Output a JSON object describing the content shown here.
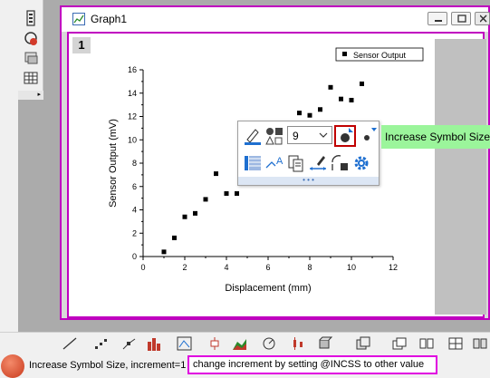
{
  "window": {
    "title": "Graph1",
    "layer_label": "1"
  },
  "chart_data": {
    "type": "scatter",
    "xlabel": "Displacement (mm)",
    "ylabel": "Sensor Output (mV)",
    "xlim": [
      0,
      12
    ],
    "ylim": [
      0,
      16
    ],
    "xticks": [
      0,
      2,
      4,
      6,
      8,
      10,
      12
    ],
    "yticks": [
      0,
      2,
      4,
      6,
      8,
      10,
      12,
      14,
      16
    ],
    "grid": false,
    "legend_position": "top-right",
    "series": [
      {
        "name": "Sensor Output",
        "x": [
          1.0,
          1.5,
          2.0,
          2.5,
          3.0,
          3.5,
          4.0,
          4.5,
          7.5,
          8.0,
          8.5,
          9.0,
          9.5,
          10.0,
          10.5
        ],
        "y": [
          0.4,
          1.6,
          3.4,
          3.7,
          4.9,
          7.1,
          5.4,
          5.4,
          12.3,
          12.1,
          12.6,
          14.5,
          13.5,
          13.4,
          14.8
        ]
      }
    ]
  },
  "mini_toolbar": {
    "symbol_size_value": "9",
    "tooltip": "Increase Symbol Size"
  },
  "colors": {
    "window_border": "#c000c0",
    "tooltip_bg": "#9bf59b",
    "selected_button_border": "#c00000",
    "hint_border": "#e000e0"
  },
  "status_bar": {
    "text": "Increase Symbol Size, increment=1",
    "hint": "change increment by setting @INCSS to other value"
  }
}
